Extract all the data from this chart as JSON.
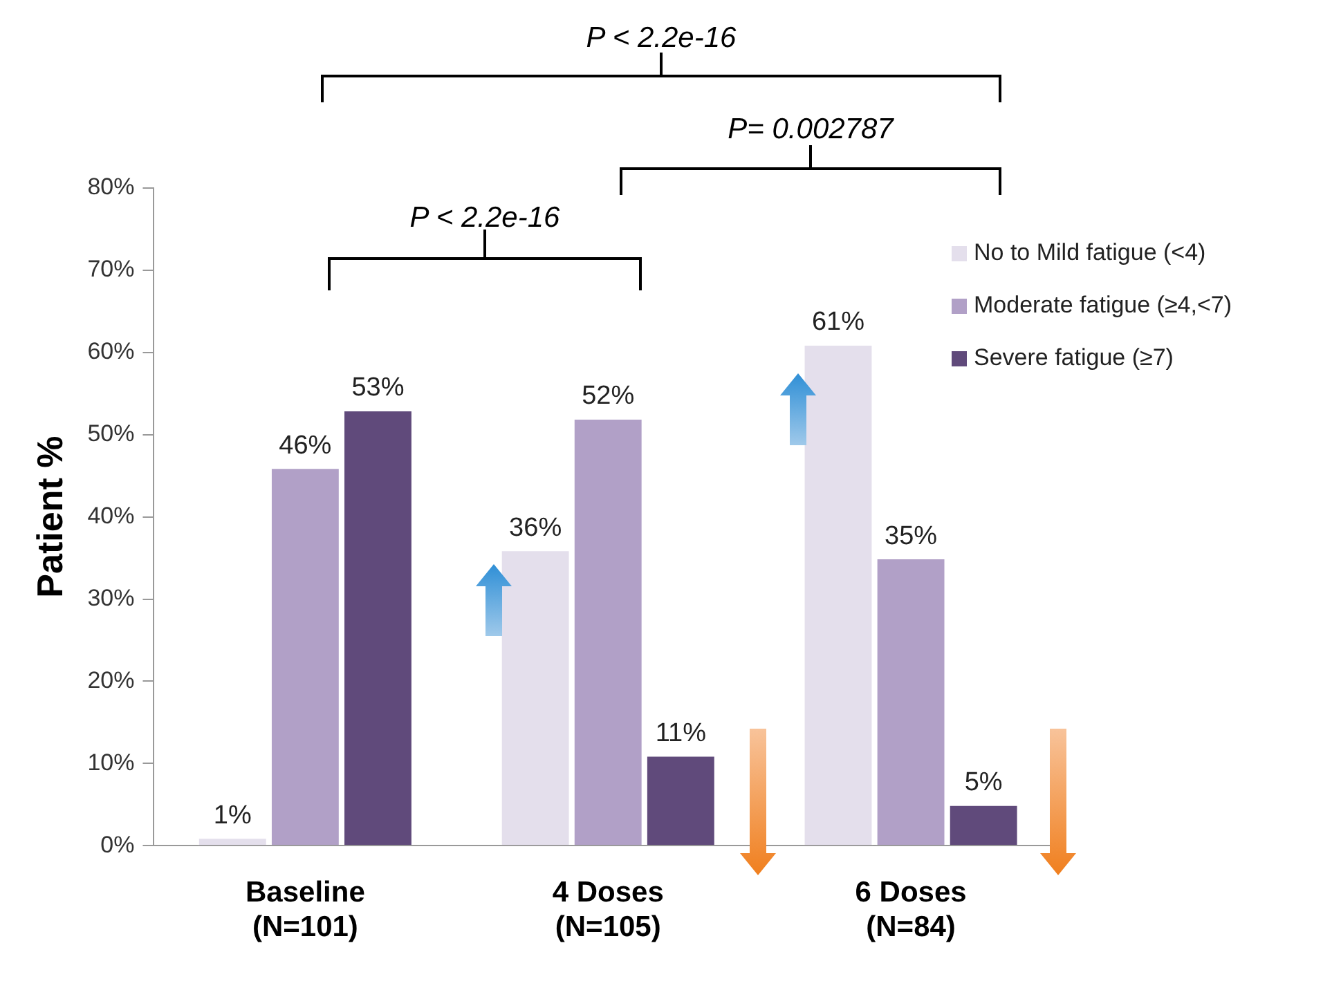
{
  "chart_data": {
    "type": "bar",
    "ylabel": "Patient %",
    "categories": [
      "Baseline\n(N=101)",
      "4 Doses\n(N=105)",
      "6 Doses\n(N=84)"
    ],
    "series": [
      {
        "name": "No to Mild fatigue (<4)",
        "color": "#e4dfec",
        "values": [
          1,
          36,
          61
        ],
        "value_labels": [
          "1%",
          "36%",
          "61%"
        ]
      },
      {
        "name": "Moderate fatigue (≥4,<7)",
        "color": "#b1a0c7",
        "values": [
          46,
          52,
          35
        ],
        "value_labels": [
          "46%",
          "52%",
          "35%"
        ]
      },
      {
        "name": "Severe fatigue (≥7)",
        "color": "#604a7b",
        "values": [
          53,
          11,
          5
        ],
        "value_labels": [
          "53%",
          "11%",
          "5%"
        ]
      }
    ],
    "ylim": [
      0,
      80
    ],
    "yticks": [
      {
        "value": 0,
        "label": "0%"
      },
      {
        "value": 10,
        "label": "10%"
      },
      {
        "value": 20,
        "label": "20%"
      },
      {
        "value": 30,
        "label": "30%"
      },
      {
        "value": 40,
        "label": "40%"
      },
      {
        "value": 50,
        "label": "50%"
      },
      {
        "value": 60,
        "label": "60%"
      },
      {
        "value": 70,
        "label": "70%"
      },
      {
        "value": 80,
        "label": "80%"
      }
    ],
    "grid": false,
    "legend": "top right",
    "annotations": [
      "P < 2.2e-16",
      "P= 0.002787",
      "P < 2.2e-16"
    ]
  }
}
